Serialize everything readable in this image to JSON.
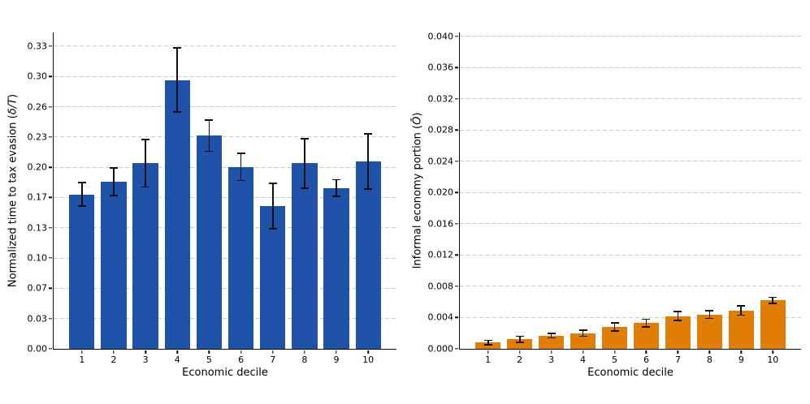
{
  "figure": {
    "background": "#ffffff",
    "grid_color": "#cbcbcb",
    "axis_color": "#0a0a0a",
    "error_bar_color": "#101010"
  },
  "chart_data": [
    {
      "type": "bar",
      "title": "",
      "xlabel": "Economic decile",
      "ylabel": "Normalized time to tax evasion (δ/T)",
      "ylabel_parts": {
        "prefix": "Normalized time to tax evasion (",
        "math": "δ/T",
        "suffix": ")"
      },
      "categories": [
        "1",
        "2",
        "3",
        "4",
        "5",
        "6",
        "7",
        "8",
        "9",
        "10"
      ],
      "values": [
        0.169,
        0.183,
        0.203,
        0.294,
        0.233,
        0.199,
        0.156,
        0.203,
        0.176,
        0.205
      ],
      "errors": [
        0.013,
        0.015,
        0.026,
        0.035,
        0.017,
        0.015,
        0.025,
        0.027,
        0.009,
        0.03
      ],
      "bar_color": "#1e53a9",
      "ytick_values": [
        0,
        0.0331,
        0.0662,
        0.0993,
        0.1324,
        0.1655,
        0.1986,
        0.2317,
        0.2648,
        0.2979,
        0.331
      ],
      "ytick_labels": [
        "0.00",
        "0.03",
        "0.07",
        "0.10",
        "0.13",
        "0.17",
        "0.20",
        "0.23",
        "0.26",
        "0.30",
        "0.33"
      ],
      "ylim": [
        0,
        0.346
      ],
      "xlim": [
        0.11,
        10.89
      ],
      "bar_width_units": 0.8,
      "grid": "horizontal-dashed",
      "legend": "none"
    },
    {
      "type": "bar",
      "title": "",
      "xlabel": "Economic decile",
      "ylabel": "Informal economy portion (Ō)",
      "ylabel_parts": {
        "prefix": "Informal economy portion (",
        "math": "Ō",
        "suffix": ")"
      },
      "categories": [
        "1",
        "2",
        "3",
        "4",
        "5",
        "6",
        "7",
        "8",
        "9",
        "10"
      ],
      "values": [
        0.0008,
        0.0012,
        0.0017,
        0.002,
        0.0028,
        0.0033,
        0.0042,
        0.0044,
        0.0049,
        0.0062
      ],
      "errors": [
        0.0003,
        0.0004,
        0.0003,
        0.0004,
        0.0005,
        0.0005,
        0.0006,
        0.0005,
        0.0006,
        0.0004
      ],
      "bar_color": "#e07d05",
      "ytick_values": [
        0,
        0.004,
        0.008,
        0.012,
        0.016,
        0.02,
        0.024,
        0.028,
        0.032,
        0.036,
        0.04
      ],
      "ytick_labels": [
        "0.000",
        "0.004",
        "0.008",
        "0.012",
        "0.016",
        "0.020",
        "0.024",
        "0.028",
        "0.032",
        "0.036",
        "0.040"
      ],
      "ylim": [
        0,
        0.0405
      ],
      "xlim": [
        0.11,
        10.89
      ],
      "bar_width_units": 0.8,
      "grid": "horizontal-dashed",
      "legend": "none"
    }
  ]
}
